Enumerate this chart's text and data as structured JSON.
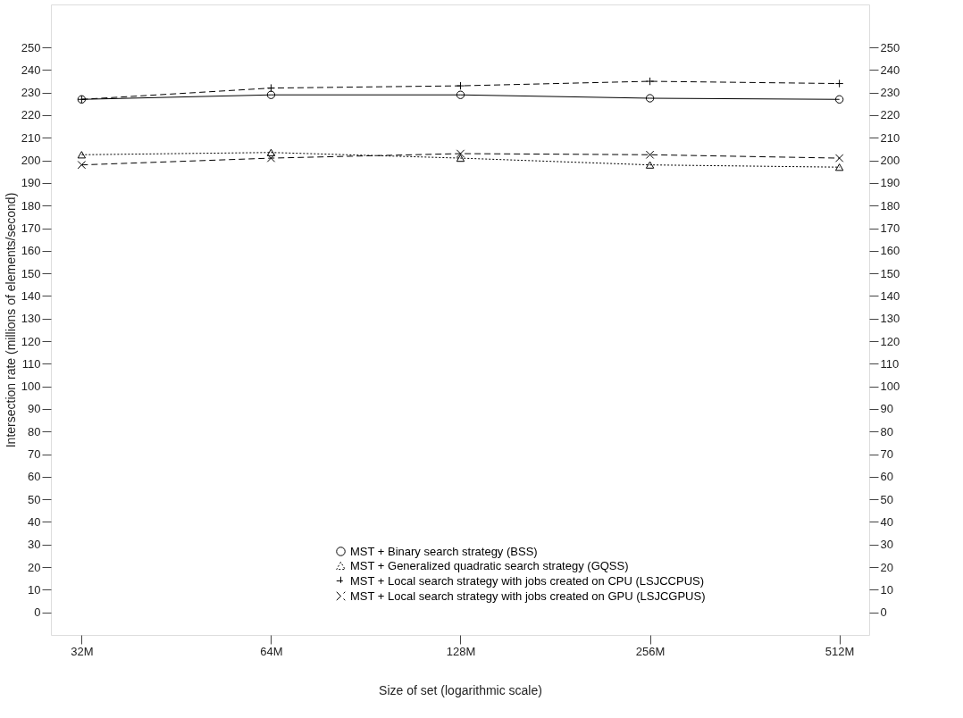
{
  "chart_data": {
    "type": "line",
    "xlabel": "Size of set (logarithmic scale)",
    "ylabel": "Intersection rate (millions of elements/second)",
    "x": [
      32,
      64,
      128,
      256,
      512
    ],
    "log": "x",
    "xlim": [
      28.6,
      571
    ],
    "xticks": [
      {
        "value": 32,
        "label": "32M"
      },
      {
        "value": 64,
        "label": "64M"
      },
      {
        "value": 128,
        "label": "128M"
      },
      {
        "value": 256,
        "label": "256M"
      },
      {
        "value": 512,
        "label": "512M"
      }
    ],
    "ylim": [
      -10,
      269
    ],
    "yticks": [
      0,
      10,
      20,
      30,
      40,
      50,
      60,
      70,
      80,
      90,
      100,
      110,
      120,
      130,
      140,
      150,
      160,
      170,
      180,
      190,
      200,
      210,
      220,
      230,
      240,
      250
    ],
    "y2lim": [
      -10,
      269
    ],
    "y2ticks": [
      0,
      10,
      20,
      30,
      40,
      50,
      60,
      70,
      80,
      90,
      100,
      110,
      120,
      130,
      140,
      150,
      160,
      170,
      180,
      190,
      200,
      210,
      220,
      230,
      240,
      250
    ],
    "grid": false,
    "legend": "bottom",
    "series": [
      {
        "name": "MST + Binary search strategy (BSS)",
        "color": "#000000",
        "marker": "circle",
        "line_style": "solid",
        "values": [
          227,
          229,
          229,
          227.5,
          227
        ]
      },
      {
        "name": "MST + Generalized quadratic search strategy (GQSS)",
        "color": "#000000",
        "marker": "triangle",
        "line_style": "dotted",
        "values": [
          202.5,
          203.5,
          201,
          198,
          197
        ]
      },
      {
        "name": "MST + Local search strategy with jobs created on CPU (LSJCCPUS)",
        "color": "#000000",
        "marker": "cross",
        "line_style": "dashed",
        "values": [
          227,
          232,
          233,
          235,
          234
        ]
      },
      {
        "name": "MST + Local search strategy with jobs created on GPU (LSJCGPUS)",
        "color": "#000000",
        "marker": "x",
        "line_style": "dashed",
        "values": [
          198,
          201,
          203,
          202.5,
          201
        ]
      }
    ]
  }
}
